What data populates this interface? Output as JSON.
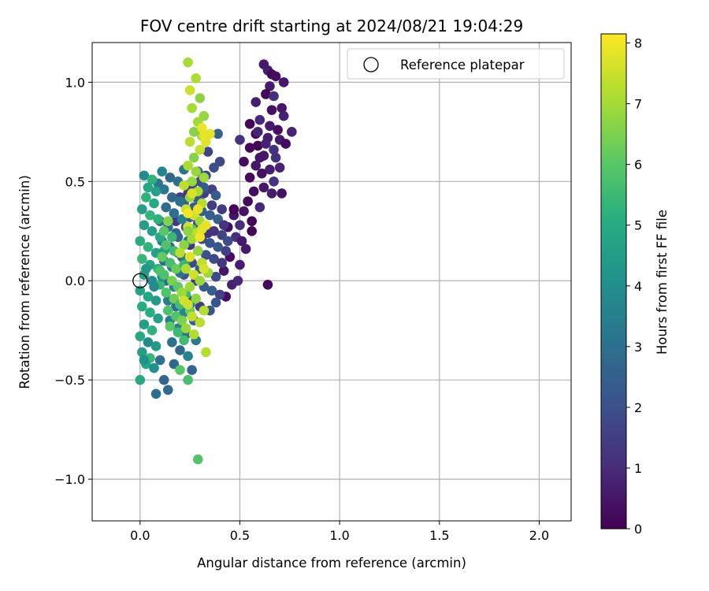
{
  "chart_data": {
    "type": "scatter",
    "title": "FOV centre drift starting at 2024/08/21 19:04:29",
    "xlabel": "Angular distance from reference (arcmin)",
    "ylabel": "Rotation from reference (arcmin)",
    "xlim": [
      -0.24,
      2.16
    ],
    "ylim": [
      -1.21,
      1.2
    ],
    "x_ticks": [
      0.0,
      0.5,
      1.0,
      1.5,
      2.0
    ],
    "x_tick_labels": [
      "0.0",
      "0.5",
      "1.0",
      "1.5",
      "2.0"
    ],
    "y_ticks": [
      -1.0,
      -0.5,
      0.0,
      0.5,
      1.0
    ],
    "y_tick_labels": [
      "−1.0",
      "−0.5",
      "0.0",
      "0.5",
      "1.0"
    ],
    "grid": true,
    "legend": {
      "placement": "top-right",
      "entries": [
        {
          "label": "Reference platepar",
          "marker": "open-circle"
        }
      ]
    },
    "reference_point": {
      "x": 0.0,
      "y": 0.0
    },
    "colorbar": {
      "label": "Hours from first FF file",
      "colormap": "viridis",
      "range": [
        0,
        8.15
      ],
      "ticks": [
        0,
        1,
        2,
        3,
        4,
        5,
        6,
        7,
        8
      ],
      "tick_labels": [
        "0",
        "1",
        "2",
        "3",
        "4",
        "5",
        "6",
        "7",
        "8"
      ]
    },
    "series": [
      {
        "hours_range": [
          0.0,
          1.2
        ],
        "points": [
          [
            0.62,
            1.09
          ],
          [
            0.64,
            1.06
          ],
          [
            0.66,
            1.04
          ],
          [
            0.68,
            1.03
          ],
          [
            0.72,
            1.0
          ],
          [
            0.65,
            0.98
          ],
          [
            0.63,
            0.94
          ],
          [
            0.67,
            0.93
          ],
          [
            0.58,
            0.9
          ],
          [
            0.71,
            0.87
          ],
          [
            0.66,
            0.86
          ],
          [
            0.6,
            0.81
          ],
          [
            0.72,
            0.83
          ],
          [
            0.55,
            0.79
          ],
          [
            0.65,
            0.78
          ],
          [
            0.69,
            0.76
          ],
          [
            0.76,
            0.75
          ],
          [
            0.58,
            0.74
          ],
          [
            0.64,
            0.72
          ],
          [
            0.7,
            0.71
          ],
          [
            0.73,
            0.69
          ],
          [
            0.59,
            0.68
          ],
          [
            0.67,
            0.66
          ],
          [
            0.5,
            0.71
          ],
          [
            0.55,
            0.67
          ],
          [
            0.62,
            0.63
          ],
          [
            0.68,
            0.62
          ],
          [
            0.52,
            0.6
          ],
          [
            0.58,
            0.58
          ],
          [
            0.65,
            0.56
          ],
          [
            0.7,
            0.57
          ],
          [
            0.61,
            0.54
          ],
          [
            0.55,
            0.52
          ],
          [
            0.67,
            0.5
          ],
          [
            0.62,
            0.47
          ],
          [
            0.57,
            0.45
          ],
          [
            0.66,
            0.44
          ],
          [
            0.71,
            0.44
          ],
          [
            0.54,
            0.4
          ],
          [
            0.6,
            0.37
          ],
          [
            0.52,
            0.35
          ],
          [
            0.47,
            0.33
          ],
          [
            0.56,
            0.3
          ],
          [
            0.5,
            0.28
          ],
          [
            0.44,
            0.27
          ],
          [
            0.48,
            0.22
          ],
          [
            0.53,
            0.16
          ],
          [
            0.45,
            0.12
          ],
          [
            0.5,
            0.08
          ],
          [
            0.42,
            0.05
          ],
          [
            0.49,
            0.0
          ],
          [
            0.46,
            -0.02
          ],
          [
            0.64,
            -0.02
          ],
          [
            0.43,
            -0.08
          ],
          [
            0.51,
            0.2
          ],
          [
            0.56,
            0.25
          ],
          [
            0.47,
            0.36
          ],
          [
            0.6,
            0.62
          ],
          [
            0.59,
            0.75
          ],
          [
            0.63,
            0.69
          ]
        ]
      },
      {
        "hours_range": [
          1.2,
          2.6
        ],
        "points": [
          [
            0.39,
            0.74
          ],
          [
            0.34,
            0.65
          ],
          [
            0.4,
            0.6
          ],
          [
            0.37,
            0.57
          ],
          [
            0.33,
            0.53
          ],
          [
            0.29,
            0.55
          ],
          [
            0.3,
            0.5
          ],
          [
            0.26,
            0.48
          ],
          [
            0.36,
            0.46
          ],
          [
            0.32,
            0.44
          ],
          [
            0.28,
            0.42
          ],
          [
            0.24,
            0.44
          ],
          [
            0.2,
            0.42
          ],
          [
            0.22,
            0.39
          ],
          [
            0.27,
            0.37
          ],
          [
            0.31,
            0.35
          ],
          [
            0.35,
            0.33
          ],
          [
            0.39,
            0.31
          ],
          [
            0.25,
            0.32
          ],
          [
            0.29,
            0.29
          ],
          [
            0.33,
            0.27
          ],
          [
            0.37,
            0.25
          ],
          [
            0.41,
            0.23
          ],
          [
            0.23,
            0.27
          ],
          [
            0.27,
            0.23
          ],
          [
            0.31,
            0.21
          ],
          [
            0.35,
            0.19
          ],
          [
            0.39,
            0.17
          ],
          [
            0.43,
            0.15
          ],
          [
            0.19,
            0.22
          ],
          [
            0.25,
            0.18
          ],
          [
            0.29,
            0.15
          ],
          [
            0.33,
            0.13
          ],
          [
            0.37,
            0.11
          ],
          [
            0.41,
            0.09
          ],
          [
            0.21,
            0.12
          ],
          [
            0.26,
            0.09
          ],
          [
            0.3,
            0.06
          ],
          [
            0.34,
            0.04
          ],
          [
            0.38,
            0.02
          ],
          [
            0.28,
            0.0
          ],
          [
            0.32,
            -0.03
          ],
          [
            0.36,
            -0.05
          ],
          [
            0.4,
            -0.07
          ],
          [
            0.25,
            -0.1
          ],
          [
            0.3,
            -0.13
          ],
          [
            0.35,
            -0.15
          ],
          [
            0.38,
            -0.11
          ],
          [
            0.22,
            0.03
          ],
          [
            0.27,
            -0.2
          ],
          [
            0.24,
            0.48
          ],
          [
            0.3,
            0.4
          ],
          [
            0.36,
            0.38
          ],
          [
            0.42,
            0.28
          ],
          [
            0.18,
            0.3
          ],
          [
            0.34,
            0.24
          ],
          [
            0.44,
            0.2
          ],
          [
            0.32,
            0.47
          ],
          [
            0.38,
            0.43
          ],
          [
            0.41,
            0.36
          ]
        ]
      },
      {
        "hours_range": [
          2.6,
          3.8
        ],
        "points": [
          [
            0.22,
            0.56
          ],
          [
            0.15,
            0.52
          ],
          [
            0.19,
            0.5
          ],
          [
            0.12,
            0.46
          ],
          [
            0.16,
            0.42
          ],
          [
            0.2,
            0.4
          ],
          [
            0.13,
            0.37
          ],
          [
            0.17,
            0.34
          ],
          [
            0.21,
            0.31
          ],
          [
            0.1,
            0.3
          ],
          [
            0.14,
            0.27
          ],
          [
            0.18,
            0.24
          ],
          [
            0.11,
            0.2
          ],
          [
            0.15,
            0.17
          ],
          [
            0.19,
            0.14
          ],
          [
            0.12,
            0.1
          ],
          [
            0.16,
            0.07
          ],
          [
            0.2,
            0.04
          ],
          [
            0.13,
            0.0
          ],
          [
            0.17,
            -0.03
          ],
          [
            0.21,
            -0.06
          ],
          [
            0.14,
            -0.1
          ],
          [
            0.18,
            -0.13
          ],
          [
            0.22,
            -0.16
          ],
          [
            0.15,
            -0.2
          ],
          [
            0.19,
            -0.24
          ],
          [
            0.23,
            -0.27
          ],
          [
            0.16,
            -0.31
          ],
          [
            0.2,
            -0.35
          ],
          [
            0.24,
            -0.38
          ],
          [
            0.17,
            -0.42
          ],
          [
            0.12,
            -0.5
          ],
          [
            0.14,
            -0.55
          ],
          [
            0.08,
            -0.57
          ],
          [
            0.26,
            -0.45
          ],
          [
            0.28,
            -0.3
          ],
          [
            0.25,
            -0.12
          ],
          [
            0.1,
            -0.4
          ],
          [
            0.23,
            0.1
          ],
          [
            0.11,
            0.55
          ],
          [
            0.09,
            0.49
          ],
          [
            0.24,
            0.2
          ]
        ]
      },
      {
        "hours_range": [
          3.8,
          5.4
        ],
        "points": [
          [
            0.02,
            0.53
          ],
          [
            0.06,
            0.51
          ],
          [
            0.04,
            0.47
          ],
          [
            0.08,
            0.45
          ],
          [
            0.03,
            0.42
          ],
          [
            0.07,
            0.39
          ],
          [
            0.01,
            0.36
          ],
          [
            0.05,
            0.33
          ],
          [
            0.09,
            0.31
          ],
          [
            0.02,
            0.28
          ],
          [
            0.06,
            0.25
          ],
          [
            0.1,
            0.22
          ],
          [
            0.0,
            0.2
          ],
          [
            0.04,
            0.17
          ],
          [
            0.08,
            0.14
          ],
          [
            0.01,
            0.11
          ],
          [
            0.05,
            0.08
          ],
          [
            0.09,
            0.06
          ],
          [
            0.02,
            0.03
          ],
          [
            0.06,
            0.0
          ],
          [
            0.1,
            -0.02
          ],
          [
            0.0,
            -0.05
          ],
          [
            0.04,
            -0.08
          ],
          [
            0.08,
            -0.1
          ],
          [
            0.01,
            -0.13
          ],
          [
            0.05,
            -0.16
          ],
          [
            0.09,
            -0.19
          ],
          [
            0.02,
            -0.22
          ],
          [
            0.06,
            -0.25
          ],
          [
            0.0,
            -0.28
          ],
          [
            0.04,
            -0.31
          ],
          [
            0.08,
            -0.33
          ],
          [
            0.01,
            -0.36
          ],
          [
            0.05,
            -0.39
          ],
          [
            0.03,
            -0.42
          ],
          [
            0.07,
            -0.44
          ],
          [
            0.0,
            -0.5
          ],
          [
            0.02,
            -0.4
          ],
          [
            0.11,
            0.02
          ],
          [
            0.12,
            0.15
          ],
          [
            0.03,
            0.06
          ],
          [
            0.07,
            -0.03
          ]
        ]
      },
      {
        "hours_range": [
          5.4,
          6.6
        ],
        "points": [
          [
            0.14,
            0.3
          ],
          [
            0.12,
            0.25
          ],
          [
            0.16,
            0.22
          ],
          [
            0.13,
            0.18
          ],
          [
            0.17,
            0.15
          ],
          [
            0.11,
            0.12
          ],
          [
            0.15,
            0.09
          ],
          [
            0.18,
            0.06
          ],
          [
            0.12,
            0.03
          ],
          [
            0.16,
            0.0
          ],
          [
            0.19,
            -0.03
          ],
          [
            0.13,
            -0.06
          ],
          [
            0.17,
            -0.09
          ],
          [
            0.2,
            -0.12
          ],
          [
            0.14,
            -0.15
          ],
          [
            0.18,
            -0.18
          ],
          [
            0.21,
            -0.2
          ],
          [
            0.15,
            -0.23
          ],
          [
            0.19,
            -0.26
          ],
          [
            0.22,
            -0.3
          ],
          [
            0.2,
            -0.45
          ],
          [
            0.24,
            -0.5
          ],
          [
            0.29,
            -0.9
          ],
          [
            0.26,
            0.26
          ],
          [
            0.1,
            0.05
          ],
          [
            0.22,
            0.08
          ],
          [
            0.23,
            -0.07
          ],
          [
            0.25,
            -0.15
          ]
        ]
      },
      {
        "hours_range": [
          6.6,
          7.6
        ],
        "points": [
          [
            0.24,
            1.1
          ],
          [
            0.28,
            1.02
          ],
          [
            0.25,
            0.96
          ],
          [
            0.3,
            0.92
          ],
          [
            0.26,
            0.87
          ],
          [
            0.32,
            0.83
          ],
          [
            0.29,
            0.8
          ],
          [
            0.27,
            0.75
          ],
          [
            0.31,
            0.73
          ],
          [
            0.25,
            0.7
          ],
          [
            0.3,
            0.66
          ],
          [
            0.27,
            0.62
          ],
          [
            0.24,
            0.58
          ],
          [
            0.28,
            0.55
          ],
          [
            0.32,
            0.52
          ],
          [
            0.26,
            0.5
          ],
          [
            0.22,
            0.48
          ],
          [
            0.29,
            0.45
          ],
          [
            0.25,
            0.42
          ],
          [
            0.31,
            0.39
          ],
          [
            0.23,
            0.36
          ],
          [
            0.27,
            0.33
          ],
          [
            0.3,
            0.3
          ],
          [
            0.24,
            0.27
          ],
          [
            0.28,
            0.24
          ],
          [
            0.26,
            0.21
          ],
          [
            0.22,
            0.18
          ],
          [
            0.29,
            0.15
          ],
          [
            0.25,
            0.12
          ],
          [
            0.31,
            0.09
          ],
          [
            0.23,
            0.06
          ],
          [
            0.27,
            0.03
          ],
          [
            0.3,
            0.0
          ],
          [
            0.25,
            -0.03
          ],
          [
            0.21,
            -0.06
          ],
          [
            0.28,
            -0.09
          ],
          [
            0.24,
            -0.12
          ],
          [
            0.32,
            -0.15
          ],
          [
            0.26,
            -0.18
          ],
          [
            0.3,
            -0.21
          ],
          [
            0.23,
            -0.24
          ],
          [
            0.27,
            -0.27
          ],
          [
            0.24,
            0.25
          ],
          [
            0.2,
            0.14
          ],
          [
            0.22,
            -0.1
          ],
          [
            0.33,
            -0.36
          ],
          [
            0.34,
            0.04
          ]
        ]
      },
      {
        "hours_range": [
          7.6,
          8.1
        ],
        "points": [
          [
            0.33,
            0.7
          ],
          [
            0.31,
            0.77
          ],
          [
            0.32,
            0.73
          ],
          [
            0.26,
            0.44
          ],
          [
            0.31,
            0.26
          ],
          [
            0.24,
            0.34
          ],
          [
            0.3,
            0.22
          ],
          [
            0.35,
            0.74
          ],
          [
            0.33,
            0.28
          ],
          [
            0.29,
            0.36
          ],
          [
            0.25,
            0.12
          ],
          [
            0.32,
            0.06
          ]
        ]
      }
    ]
  }
}
